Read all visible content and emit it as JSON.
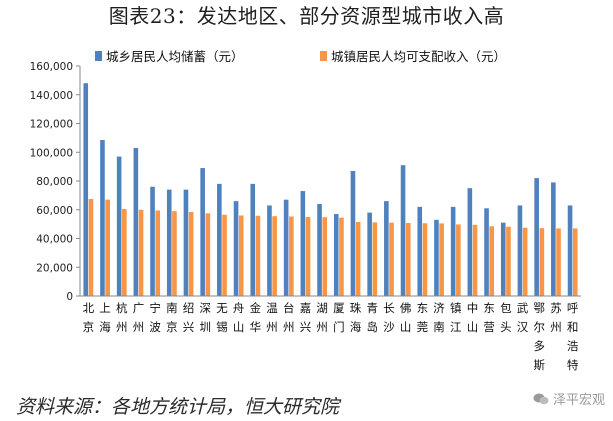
{
  "page": {
    "title": "图表23：发达地区、部分资源型城市收入高",
    "source": "资料来源：各地方统计局，恒大研究院",
    "watermark": "泽平宏观"
  },
  "chart_data": {
    "type": "bar",
    "xlabel": "",
    "ylabel": "",
    "ylim": [
      0,
      160000
    ],
    "yticks": [
      "0",
      "20,000",
      "40,000",
      "60,000",
      "80,000",
      "100,000",
      "120,000",
      "140,000",
      "160,000"
    ],
    "legend_position": "top",
    "grid": false,
    "categories": [
      "北京",
      "上海",
      "杭州",
      "广州",
      "宁波",
      "南京",
      "绍兴",
      "深圳",
      "无锡",
      "舟山",
      "金华",
      "温州",
      "台州",
      "嘉兴",
      "湖州",
      "厦门",
      "珠海",
      "青岛",
      "长沙",
      "佛山",
      "东莞",
      "济南",
      "镇江",
      "中山",
      "东营",
      "包头",
      "武汉",
      "鄂尔多斯",
      "苏州",
      "呼和浩特"
    ],
    "series": [
      {
        "name": "城乡居民人均储蓄（元）",
        "color": "#4f81bd",
        "values": [
          148000,
          108500,
          97000,
          103000,
          76000,
          74000,
          74000,
          89000,
          78000,
          66000,
          78000,
          63000,
          67000,
          73000,
          64000,
          57000,
          87000,
          58000,
          66000,
          91000,
          62000,
          53000,
          62000,
          75000,
          61000,
          51000,
          63000,
          82000,
          79000,
          63000
        ]
      },
      {
        "name": "城镇居民人均可支配收入（元）",
        "color": "#f79646",
        "values": [
          67500,
          67000,
          60500,
          60000,
          59500,
          59000,
          58500,
          57500,
          56500,
          56000,
          55800,
          55500,
          55300,
          55000,
          54800,
          54500,
          51500,
          51200,
          51000,
          50800,
          50600,
          50500,
          49800,
          49500,
          48500,
          48200,
          47500,
          47200,
          47000,
          47000
        ]
      }
    ]
  }
}
